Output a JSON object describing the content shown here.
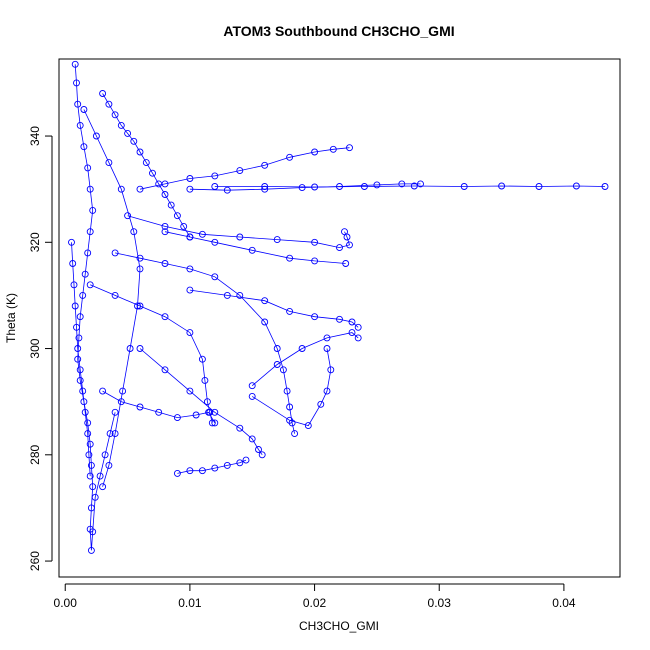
{
  "chart_data": {
    "type": "scatter",
    "title": "ATOM3 Southbound CH3CHO_GMI",
    "xlabel": "CH3CHO_GMI",
    "ylabel": "Theta (K)",
    "xlim": [
      -0.0005,
      0.0445
    ],
    "ylim": [
      257,
      354.5
    ],
    "x_ticks": [
      0.0,
      0.01,
      0.02,
      0.03,
      0.04
    ],
    "x_tick_labels": [
      "0.00",
      "0.01",
      "0.02",
      "0.03",
      "0.04"
    ],
    "y_ticks": [
      260,
      280,
      300,
      320,
      340
    ],
    "y_tick_labels": [
      "260",
      "280",
      "300",
      "320",
      "340"
    ],
    "grid": false,
    "marker": "open-circle",
    "color": "#0000ff",
    "series": [
      {
        "points": [
          [
            0.0008,
            353.5
          ],
          [
            0.0009,
            350
          ],
          [
            0.001,
            346
          ],
          [
            0.0012,
            342
          ],
          [
            0.0015,
            338
          ],
          [
            0.0018,
            334
          ],
          [
            0.002,
            330
          ],
          [
            0.0022,
            326
          ],
          [
            0.002,
            322
          ],
          [
            0.0018,
            318
          ],
          [
            0.0016,
            314
          ],
          [
            0.0014,
            310
          ],
          [
            0.0012,
            306
          ],
          [
            0.0011,
            302
          ],
          [
            0.001,
            298
          ],
          [
            0.0012,
            294
          ],
          [
            0.0015,
            290
          ],
          [
            0.0018,
            286
          ],
          [
            0.002,
            282
          ],
          [
            0.0021,
            278
          ],
          [
            0.0022,
            274
          ],
          [
            0.0021,
            270
          ],
          [
            0.002,
            266
          ],
          [
            0.0021,
            262
          ],
          [
            0.0022,
            265.5
          ],
          [
            0.0024,
            272
          ],
          [
            0.0028,
            276
          ],
          [
            0.0032,
            280
          ],
          [
            0.0036,
            284
          ],
          [
            0.004,
            288
          ]
        ]
      },
      {
        "points": [
          [
            0.003,
            348
          ],
          [
            0.0035,
            346
          ],
          [
            0.004,
            344
          ],
          [
            0.0045,
            342
          ],
          [
            0.005,
            340.5
          ],
          [
            0.0055,
            339
          ],
          [
            0.006,
            337
          ],
          [
            0.0065,
            335
          ],
          [
            0.007,
            333
          ],
          [
            0.0075,
            331
          ],
          [
            0.008,
            329
          ],
          [
            0.0085,
            327
          ],
          [
            0.009,
            325
          ],
          [
            0.0095,
            323
          ],
          [
            0.01,
            321
          ]
        ]
      },
      {
        "points": [
          [
            0.006,
            330
          ],
          [
            0.008,
            331
          ],
          [
            0.01,
            332
          ],
          [
            0.012,
            332.5
          ],
          [
            0.014,
            333.5
          ],
          [
            0.016,
            334.5
          ],
          [
            0.018,
            336
          ],
          [
            0.02,
            337
          ],
          [
            0.0215,
            337.5
          ],
          [
            0.0228,
            337.8
          ]
        ]
      },
      {
        "points": [
          [
            0.01,
            330
          ],
          [
            0.013,
            329.8
          ],
          [
            0.016,
            330
          ],
          [
            0.019,
            330.3
          ],
          [
            0.022,
            330.5
          ],
          [
            0.025,
            330.8
          ],
          [
            0.027,
            331
          ],
          [
            0.0285,
            331
          ]
        ]
      },
      {
        "points": [
          [
            0.012,
            330.5
          ],
          [
            0.016,
            330.5
          ],
          [
            0.02,
            330.4
          ],
          [
            0.024,
            330.5
          ],
          [
            0.028,
            330.6
          ],
          [
            0.032,
            330.5
          ],
          [
            0.035,
            330.6
          ],
          [
            0.038,
            330.5
          ],
          [
            0.041,
            330.6
          ],
          [
            0.0433,
            330.5
          ]
        ]
      },
      {
        "points": [
          [
            0.005,
            325
          ],
          [
            0.008,
            323
          ],
          [
            0.011,
            321.5
          ],
          [
            0.014,
            321
          ],
          [
            0.017,
            320.5
          ],
          [
            0.02,
            320
          ],
          [
            0.022,
            319
          ],
          [
            0.0228,
            319.5
          ],
          [
            0.0226,
            321
          ],
          [
            0.0224,
            322
          ]
        ]
      },
      {
        "points": [
          [
            0.004,
            318
          ],
          [
            0.006,
            317
          ],
          [
            0.008,
            316
          ],
          [
            0.01,
            315
          ],
          [
            0.012,
            313.5
          ],
          [
            0.014,
            310
          ],
          [
            0.016,
            305
          ],
          [
            0.017,
            300
          ],
          [
            0.0175,
            296
          ],
          [
            0.0178,
            292
          ],
          [
            0.018,
            289
          ],
          [
            0.0182,
            286
          ],
          [
            0.0184,
            284
          ]
        ]
      },
      {
        "points": [
          [
            0.002,
            312
          ],
          [
            0.004,
            310
          ],
          [
            0.006,
            308
          ],
          [
            0.008,
            306
          ],
          [
            0.01,
            303
          ],
          [
            0.011,
            298
          ],
          [
            0.0112,
            294
          ],
          [
            0.0114,
            290
          ],
          [
            0.0116,
            288
          ],
          [
            0.0118,
            286
          ]
        ]
      },
      {
        "points": [
          [
            0.006,
            300
          ],
          [
            0.008,
            296
          ],
          [
            0.01,
            292
          ],
          [
            0.012,
            288
          ],
          [
            0.014,
            285
          ],
          [
            0.015,
            283
          ],
          [
            0.0155,
            281
          ],
          [
            0.0158,
            280
          ]
        ]
      },
      {
        "points": [
          [
            0.009,
            276.5
          ],
          [
            0.01,
            277
          ],
          [
            0.011,
            277
          ],
          [
            0.012,
            277.5
          ],
          [
            0.013,
            278
          ],
          [
            0.014,
            278.5
          ],
          [
            0.0145,
            279
          ]
        ]
      },
      {
        "points": [
          [
            0.015,
            293
          ],
          [
            0.017,
            297
          ],
          [
            0.019,
            300
          ],
          [
            0.021,
            302
          ],
          [
            0.023,
            303
          ],
          [
            0.0235,
            302
          ]
        ]
      },
      {
        "points": [
          [
            0.015,
            291
          ],
          [
            0.018,
            286.5
          ],
          [
            0.0195,
            285.5
          ],
          [
            0.0205,
            289.5
          ],
          [
            0.021,
            292
          ],
          [
            0.0213,
            296
          ],
          [
            0.021,
            300
          ]
        ]
      },
      {
        "points": [
          [
            0.003,
            292
          ],
          [
            0.0045,
            290
          ],
          [
            0.006,
            289
          ],
          [
            0.0075,
            288
          ],
          [
            0.009,
            287
          ],
          [
            0.0105,
            287.5
          ],
          [
            0.0115,
            288
          ],
          [
            0.012,
            286
          ]
        ]
      },
      {
        "points": [
          [
            0.01,
            311
          ],
          [
            0.013,
            310
          ],
          [
            0.016,
            309
          ],
          [
            0.018,
            307
          ],
          [
            0.02,
            306
          ],
          [
            0.022,
            305.5
          ],
          [
            0.023,
            305
          ],
          [
            0.0235,
            304
          ]
        ]
      },
      {
        "points": [
          [
            0.008,
            322
          ],
          [
            0.01,
            321
          ],
          [
            0.012,
            320
          ],
          [
            0.015,
            318.5
          ],
          [
            0.018,
            317
          ],
          [
            0.02,
            316.5
          ],
          [
            0.0225,
            316
          ]
        ]
      },
      {
        "points": [
          [
            0.0015,
            345
          ],
          [
            0.0025,
            340
          ],
          [
            0.0035,
            335
          ],
          [
            0.0045,
            330
          ],
          [
            0.0055,
            322
          ],
          [
            0.006,
            315
          ],
          [
            0.0058,
            308
          ],
          [
            0.0052,
            300
          ],
          [
            0.0046,
            292
          ],
          [
            0.004,
            284
          ],
          [
            0.0035,
            278
          ],
          [
            0.003,
            274
          ]
        ]
      },
      {
        "points": [
          [
            0.0005,
            320
          ],
          [
            0.0006,
            316
          ],
          [
            0.0007,
            312
          ],
          [
            0.0008,
            308
          ],
          [
            0.0009,
            304
          ],
          [
            0.001,
            300
          ],
          [
            0.0012,
            296
          ],
          [
            0.0014,
            292
          ],
          [
            0.0016,
            288
          ],
          [
            0.0018,
            284
          ],
          [
            0.0019,
            280
          ],
          [
            0.002,
            276
          ]
        ]
      }
    ]
  }
}
